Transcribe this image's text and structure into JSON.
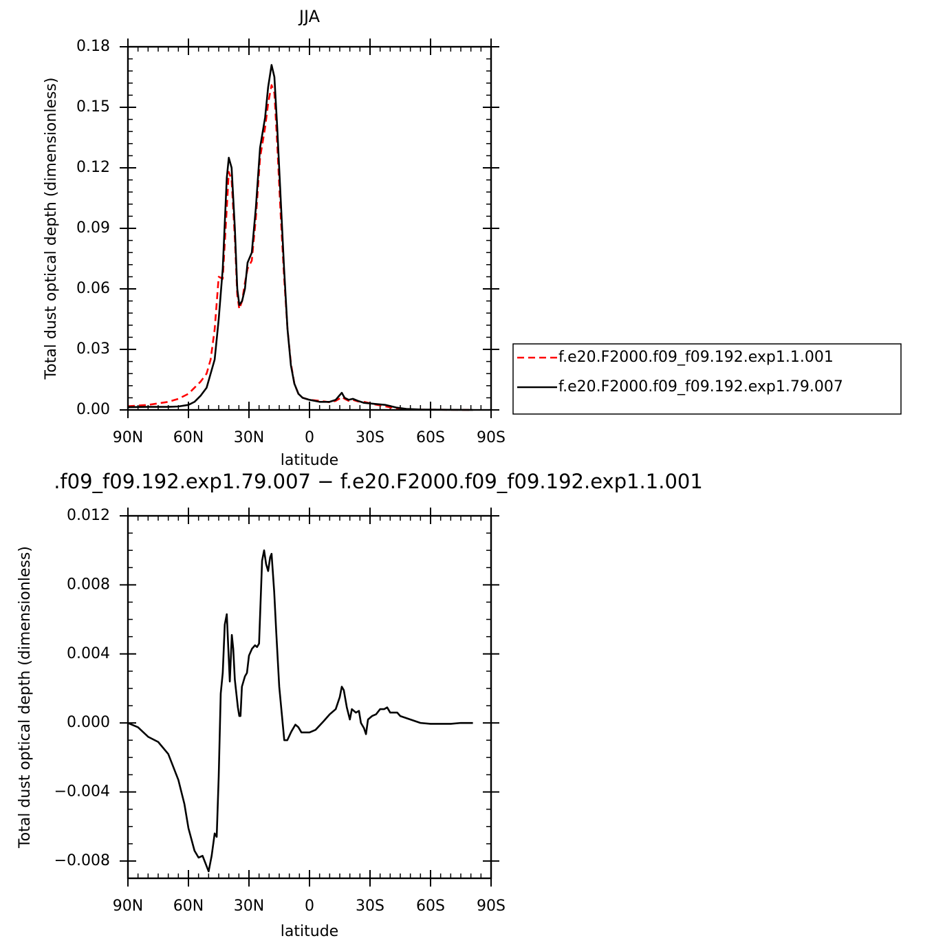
{
  "chart_data": [
    {
      "type": "line",
      "title": "JJA",
      "xlabel": "latitude",
      "ylabel": "Total dust optical depth (dimensionless)",
      "x": [
        90,
        80,
        70,
        65,
        60,
        57,
        54,
        51,
        49,
        47,
        45,
        43,
        41,
        40,
        38.6,
        37,
        35.8,
        34.8,
        33.4,
        32,
        30.7,
        28.6,
        26.6,
        24.5,
        22,
        20.5,
        18.8,
        17.4,
        16,
        14.3,
        12.6,
        10.9,
        9.2,
        7.5,
        5.5,
        3.4,
        0,
        -5,
        -10,
        -13,
        -14.7,
        -16,
        -17.4,
        -19.4,
        -21.5,
        -24,
        -27,
        -32,
        -37.5,
        -43,
        -48,
        -55,
        -65,
        -81
      ],
      "series": [
        {
          "name": "f.e20.F2000.f09_f09.192.exp1.1.001",
          "color": "#ff0000",
          "line_style": "dashed",
          "values": [
            0.0018,
            0.0025,
            0.004,
            0.0055,
            0.008,
            0.011,
            0.014,
            0.018,
            0.025,
            0.04,
            0.066,
            0.065,
            0.1,
            0.118,
            0.114,
            0.085,
            0.057,
            0.05,
            0.054,
            0.063,
            0.07,
            0.074,
            0.095,
            0.125,
            0.14,
            0.152,
            0.161,
            0.157,
            0.132,
            0.097,
            0.066,
            0.04,
            0.023,
            0.013,
            0.008,
            0.006,
            0.005,
            0.0045,
            0.0038,
            0.0045,
            0.0055,
            0.0065,
            0.0055,
            0.0045,
            0.005,
            0.0042,
            0.004,
            0.0028,
            0.0018,
            0.0007,
            0.0003,
            0.0001,
            0.0001,
            0
          ]
        },
        {
          "name": "f.e20.F2000.f09_f09.192.exp1.79.007",
          "color": "#000000",
          "line_style": "solid",
          "values": [
            0.0014,
            0.0015,
            0.0015,
            0.0017,
            0.0025,
            0.004,
            0.007,
            0.011,
            0.018,
            0.025,
            0.045,
            0.07,
            0.115,
            0.125,
            0.12,
            0.09,
            0.06,
            0.052,
            0.054,
            0.06,
            0.073,
            0.078,
            0.1,
            0.13,
            0.145,
            0.16,
            0.171,
            0.165,
            0.14,
            0.105,
            0.07,
            0.04,
            0.022,
            0.013,
            0.008,
            0.006,
            0.005,
            0.004,
            0.004,
            0.005,
            0.007,
            0.0085,
            0.006,
            0.005,
            0.0055,
            0.0045,
            0.0035,
            0.003,
            0.0025,
            0.0012,
            0.0005,
            0.0002,
            0.0001,
            0
          ]
        }
      ],
      "xlim": [
        90,
        -90
      ],
      "xticks": [
        {
          "value": 90,
          "label": "90N"
        },
        {
          "value": 60,
          "label": "60N"
        },
        {
          "value": 30,
          "label": "30N"
        },
        0,
        {
          "value": -30,
          "label": "30S"
        },
        {
          "value": -60,
          "label": "60S"
        },
        {
          "value": -90,
          "label": "90S"
        }
      ],
      "ylim": [
        0,
        0.18
      ],
      "yticks": [
        {
          "value": 0,
          "label": "0.00"
        },
        {
          "value": 0.03,
          "label": "0.03"
        },
        {
          "value": 0.06,
          "label": "0.06"
        },
        {
          "value": 0.09,
          "label": "0.09"
        },
        {
          "value": 0.12,
          "label": "0.12"
        },
        {
          "value": 0.15,
          "label": "0.15"
        },
        {
          "value": 0.18,
          "label": "0.18"
        }
      ],
      "legend": "right"
    },
    {
      "type": "line",
      "title": ".f09_f09.192.exp1.79.007 − f.e20.F2000.f09_f09.192.exp1.1.001",
      "xlabel": "latitude",
      "ylabel": "Total dust optical depth (dimensionless)",
      "x": [
        90,
        85,
        80,
        75,
        70,
        65,
        62,
        60,
        57,
        55,
        53,
        51,
        50,
        48.5,
        47,
        46,
        45,
        44,
        43,
        42,
        41,
        40,
        39.5,
        38.5,
        37.8,
        37,
        35.5,
        34.8,
        34.2,
        33.5,
        32,
        31,
        30,
        28.5,
        27,
        26,
        25,
        23.5,
        22.5,
        21.5,
        20.5,
        19.5,
        18.8,
        17.5,
        16.5,
        15,
        12.5,
        11,
        9,
        7,
        5.5,
        4,
        0,
        -3,
        -7,
        -10,
        -13,
        -15,
        -16,
        -17,
        -18.5,
        -20,
        -21,
        -23,
        -24.5,
        -25.5,
        -27,
        -28,
        -29,
        -31,
        -33,
        -35,
        -37,
        -38.5,
        -40,
        -42,
        -43.5,
        -45,
        -50,
        -55,
        -60,
        -70,
        -75,
        -81
      ],
      "values": [
        0,
        -0.00025,
        -0.0008,
        -0.0011,
        -0.0018,
        -0.0033,
        -0.0047,
        -0.0061,
        -0.0074,
        -0.0078,
        -0.0077,
        -0.0083,
        -0.0086,
        -0.0077,
        -0.0064,
        -0.0066,
        -0.0031,
        0.0017,
        0.0029,
        0.0057,
        0.0063,
        0.0037,
        0.0024,
        0.0051,
        0.0043,
        0.0025,
        0.0009,
        0.0004,
        0.0004,
        0.0021,
        0.0027,
        0.0029,
        0.0039,
        0.0043,
        0.0045,
        0.0044,
        0.0046,
        0.0094,
        0.01,
        0.0092,
        0.0088,
        0.0096,
        0.0098,
        0.0076,
        0.0053,
        0.0021,
        -0.001,
        -0.001,
        -0.0005,
        -0.0001,
        -0.00025,
        -0.00055,
        -0.00055,
        -0.0004,
        0.0001,
        0.0005,
        0.0008,
        0.0015,
        0.0021,
        0.0019,
        0.0009,
        0.0002,
        0.0008,
        0.0006,
        0.0007,
        0,
        -0.0003,
        -0.00065,
        0.0002,
        0.0004,
        0.0005,
        0.0008,
        0.0008,
        0.0009,
        0.0006,
        0.0006,
        0.0006,
        0.0004,
        0.0002,
        0,
        -5e-05,
        -5e-05,
        0,
        0
      ],
      "color": "#000000",
      "xlim": [
        90,
        -90
      ],
      "xticks": [
        {
          "value": 90,
          "label": "90N"
        },
        {
          "value": 60,
          "label": "60N"
        },
        {
          "value": 30,
          "label": "30N"
        },
        0,
        {
          "value": -30,
          "label": "30S"
        },
        {
          "value": -60,
          "label": "60S"
        },
        {
          "value": -90,
          "label": "90S"
        }
      ],
      "ylim": [
        -0.009,
        0.012
      ],
      "yticks": [
        {
          "value": -0.008,
          "label": "−0.008"
        },
        {
          "value": -0.004,
          "label": "−0.004"
        },
        {
          "value": 0,
          "label": "0.000"
        },
        {
          "value": 0.004,
          "label": "0.004"
        },
        {
          "value": 0.008,
          "label": "0.008"
        },
        {
          "value": 0.012,
          "label": "0.012"
        }
      ]
    }
  ]
}
